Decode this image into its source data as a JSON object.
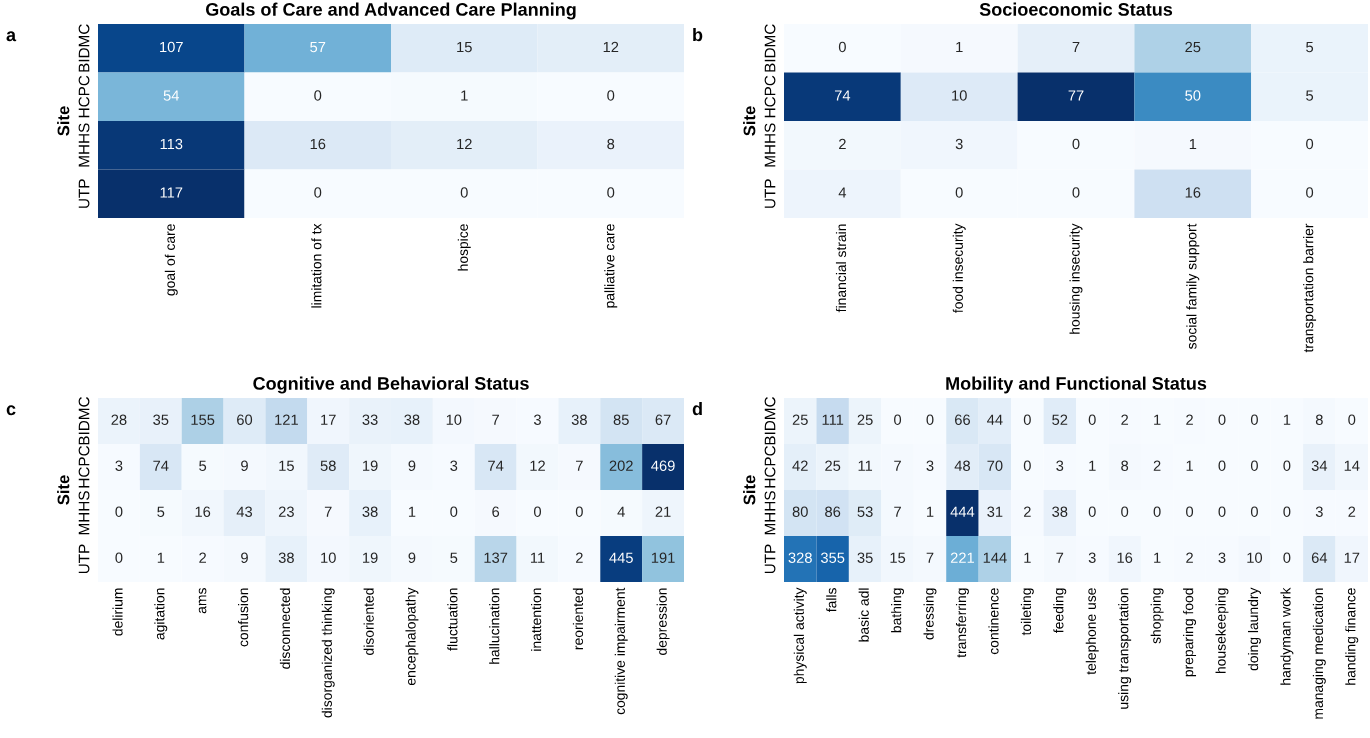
{
  "chart_data": [
    {
      "type": "heatmap",
      "title": "Goals of Care and Advanced Care Planning",
      "ylabel": "Site",
      "annotations": [
        "a"
      ],
      "data_labels": true,
      "categories": [
        "goal of care",
        "limitation of tx",
        "hospice",
        "palliative care"
      ],
      "y_categories": [
        "BIDMC",
        "HCPC",
        "MHHS",
        "UTP"
      ],
      "cells": [
        [
          107,
          57,
          15,
          12
        ],
        [
          54,
          0,
          1,
          0
        ],
        [
          113,
          16,
          12,
          8
        ],
        [
          117,
          0,
          0,
          0
        ]
      ]
    },
    {
      "type": "heatmap",
      "title": "Socioeconomic Status",
      "ylabel": "Site",
      "annotations": [
        "b"
      ],
      "data_labels": true,
      "categories": [
        "financial strain",
        "food insecurity",
        "housing insecurity",
        "social family support",
        "transportation barrier"
      ],
      "y_categories": [
        "BIDMC",
        "HCPC",
        "MHHS",
        "UTP"
      ],
      "cells": [
        [
          0,
          1,
          7,
          25,
          5
        ],
        [
          74,
          10,
          77,
          50,
          5
        ],
        [
          2,
          3,
          0,
          1,
          0
        ],
        [
          4,
          0,
          0,
          16,
          0
        ]
      ]
    },
    {
      "type": "heatmap",
      "title": "Cognitive and Behavioral Status",
      "ylabel": "Site",
      "annotations": [
        "c"
      ],
      "data_labels": true,
      "categories": [
        "delirium",
        "agitation",
        "ams",
        "confusion",
        "disconnected",
        "disorganized thinking",
        "disoriented",
        "encephalopathy",
        "fluctuation",
        "hallucination",
        "inattention",
        "reoriented",
        "cognitive impairment",
        "depression"
      ],
      "y_categories": [
        "BIDMC",
        "HCPC",
        "MHHS",
        "UTP"
      ],
      "cells": [
        [
          28,
          35,
          155,
          60,
          121,
          17,
          33,
          38,
          10,
          7,
          3,
          38,
          85,
          67
        ],
        [
          3,
          74,
          5,
          9,
          15,
          58,
          19,
          9,
          3,
          74,
          12,
          7,
          202,
          469
        ],
        [
          0,
          5,
          16,
          43,
          23,
          7,
          38,
          1,
          0,
          6,
          0,
          0,
          4,
          21
        ],
        [
          0,
          1,
          2,
          9,
          38,
          10,
          19,
          9,
          5,
          137,
          11,
          2,
          445,
          191
        ]
      ]
    },
    {
      "type": "heatmap",
      "title": "Mobility and Functional Status",
      "ylabel": "Site",
      "annotations": [
        "d"
      ],
      "data_labels": true,
      "categories": [
        "physical activity",
        "falls",
        "basic adl",
        "bathing",
        "dressing",
        "transferring",
        "continence",
        "toileting",
        "feeding",
        "telephone use",
        "using transportation",
        "shopping",
        "preparing food",
        "housekeeping",
        "doing laundry",
        "handyman work",
        "managing medication",
        "handing finance"
      ],
      "y_categories": [
        "BIDMC",
        "HCPC",
        "MHHS",
        "UTP"
      ],
      "cells": [
        [
          25,
          111,
          25,
          0,
          0,
          66,
          44,
          0,
          52,
          0,
          2,
          1,
          2,
          0,
          0,
          1,
          8,
          0
        ],
        [
          42,
          25,
          11,
          7,
          3,
          48,
          70,
          0,
          3,
          1,
          8,
          2,
          1,
          0,
          0,
          0,
          34,
          14
        ],
        [
          80,
          86,
          53,
          7,
          1,
          444,
          31,
          2,
          38,
          0,
          0,
          0,
          0,
          0,
          0,
          0,
          3,
          2
        ],
        [
          328,
          355,
          35,
          15,
          7,
          221,
          144,
          1,
          7,
          3,
          16,
          1,
          2,
          3,
          10,
          0,
          64,
          17
        ]
      ]
    }
  ]
}
